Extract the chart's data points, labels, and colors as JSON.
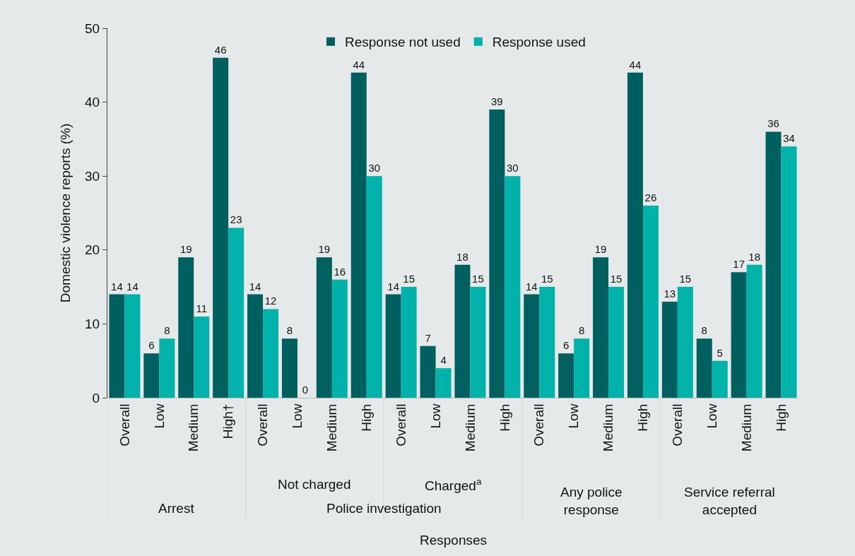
{
  "chart_data": {
    "type": "bar",
    "ylabel": "Domestic violence reports (%)",
    "categories": [
      "Overall",
      "Low",
      "Medium",
      "High†",
      "Overall",
      "Low",
      "Medium",
      "High",
      "Overall",
      "Low",
      "Medium",
      "High",
      "Overall",
      "Low",
      "Medium",
      "High",
      "Overall",
      "Low",
      "Medium",
      "High"
    ],
    "series": [
      {
        "name": "Response not used",
        "color": "#00605f",
        "values": [
          14,
          6,
          19,
          46,
          14,
          8,
          19,
          44,
          14,
          7,
          18,
          39,
          14,
          6,
          19,
          44,
          13,
          8,
          17,
          36
        ]
      },
      {
        "name": "Response used",
        "color": "#00b2a9",
        "values": [
          14,
          8,
          11,
          23,
          12,
          0,
          16,
          30,
          15,
          4,
          15,
          30,
          15,
          8,
          15,
          26,
          15,
          5,
          18,
          34
        ]
      }
    ],
    "ylim": [
      0,
      50
    ],
    "yticks": [
      0,
      10,
      20,
      30,
      40,
      50
    ],
    "data_labels": true,
    "legend": "top",
    "grid": false,
    "annotations": [
      "Arrest",
      "Not charged",
      "Police investigation",
      "Charged$^{a}$",
      "Any police\nresponse",
      "Service referral\naccepted",
      "Responses"
    ]
  }
}
